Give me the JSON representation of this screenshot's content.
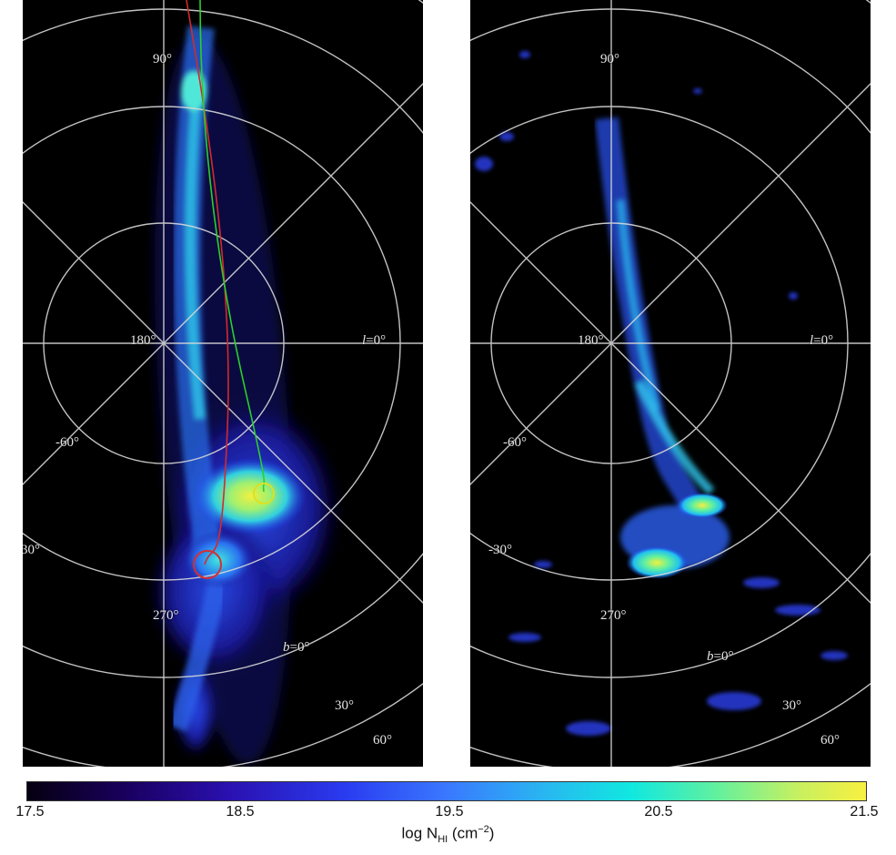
{
  "left_panel": {
    "labels": {
      "lat_90": "90°",
      "lon_180": "180°",
      "lon_0_prefix": "l",
      "lon_0_suffix": "=0°",
      "lat_m60": "-60°",
      "lat_m30": "-30°",
      "lon_270": "270°",
      "lat_0_prefix": "b",
      "lat_0_suffix": "=0°",
      "lat_30": "30°",
      "lat_60": "60°"
    },
    "colors": {
      "track_red": "#d42a2a",
      "track_green": "#2ad02a",
      "marker_red": "#d43030",
      "marker_yellow": "#e0e020"
    }
  },
  "right_panel": {
    "labels": {
      "lat_90": "90°",
      "lon_180": "180°",
      "lon_0_prefix": "l",
      "lon_0_suffix": "=0°",
      "lat_m60": "-60°",
      "lat_m30": "-30°",
      "lon_270": "270°",
      "lat_0_prefix": "b",
      "lat_0_suffix": "=0°",
      "lat_30": "30°",
      "lat_60": "60°"
    }
  },
  "colorbar": {
    "ticks": [
      "17.5",
      "18.5",
      "19.5",
      "20.5",
      "21.5"
    ],
    "title_main": "log N",
    "title_sub": "HI",
    "title_unit_open": " (cm",
    "title_unit_exp": "−2",
    "title_unit_close": ")"
  }
}
